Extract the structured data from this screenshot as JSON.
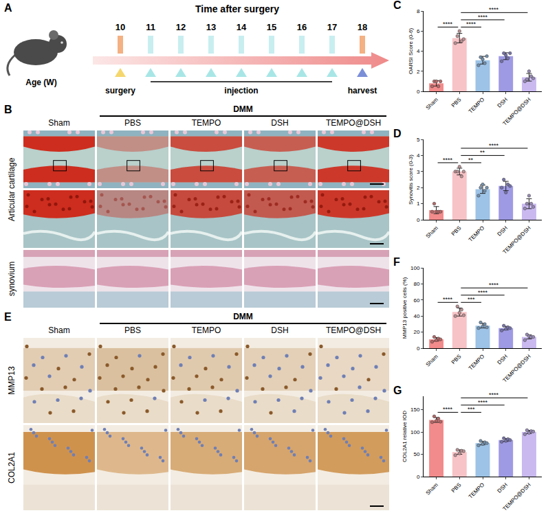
{
  "timeline": {
    "panel": "A",
    "title": "Time after surgery",
    "axis_label": "Age (W)",
    "weeks": [
      10,
      11,
      12,
      13,
      14,
      15,
      16,
      17,
      18
    ],
    "events": [
      {
        "label": "surgery",
        "from": 10,
        "to": 10,
        "color": "#f5d76e"
      },
      {
        "label": "injection",
        "from": 11,
        "to": 17,
        "color": "#a8e6e6"
      },
      {
        "label": "harvest",
        "from": 18,
        "to": 18,
        "color": "#7b8fd8"
      }
    ]
  },
  "histology": {
    "panel": "B",
    "group_label": "DMM",
    "columns": [
      "Sham",
      "PBS",
      "TEMPO",
      "DSH",
      "TEMPO@DSH"
    ],
    "group_columns": [
      "PBS",
      "TEMPO",
      "DSH",
      "TEMPO@DSH"
    ],
    "rows": [
      {
        "label": "Articular cartilage",
        "images": 2
      },
      {
        "label": "synovium",
        "images": 1
      }
    ]
  },
  "ihc": {
    "panel": "E",
    "group_label": "DMM",
    "columns": [
      "Sham",
      "PBS",
      "TEMPO",
      "DSH",
      "TEMPO@DSH"
    ],
    "group_columns": [
      "PBS",
      "TEMPO",
      "DSH",
      "TEMPO@DSH"
    ],
    "rows": [
      {
        "label": "MMP13"
      },
      {
        "label": "COL2A1"
      }
    ]
  },
  "chart_data": [
    {
      "panel": "C",
      "type": "bar",
      "ylabel": "OARSI Score (0-6)",
      "categories": [
        "Sham",
        "PBS",
        "TEMPO",
        "DSH",
        "TEMPO@DSH"
      ],
      "values": [
        0.8,
        5.3,
        3.1,
        3.5,
        1.4
      ],
      "errors": [
        0.27,
        0.47,
        0.38,
        0.34,
        0.38
      ],
      "points": [
        [
          0.5,
          1,
          1,
          0.5,
          1
        ],
        [
          4.8,
          5.5,
          6,
          5,
          5.2
        ],
        [
          2.6,
          3.4,
          3.2,
          2.8,
          3.5
        ],
        [
          3,
          3.8,
          3.6,
          3.3,
          3.8
        ],
        [
          1,
          1.2,
          2,
          1.5,
          1.3
        ]
      ],
      "colors": [
        "#f28b8b",
        "#f7c3c6",
        "#9dc3e6",
        "#9e9ae3",
        "#c9b9ef"
      ],
      "ylim": [
        0,
        8
      ],
      "yticks": [
        0,
        2,
        4,
        6,
        8
      ],
      "comparisons": [
        {
          "pair": [
            "Sham",
            "PBS"
          ],
          "label": "****"
        },
        {
          "pair": [
            "PBS",
            "TEMPO"
          ],
          "label": "****"
        },
        {
          "pair": [
            "PBS",
            "DSH"
          ],
          "label": "****"
        },
        {
          "pair": [
            "PBS",
            "TEMPO@DSH"
          ],
          "label": "****"
        }
      ]
    },
    {
      "panel": "D",
      "type": "bar",
      "ylabel": "Synovitis score (0-3)",
      "categories": [
        "Sham",
        "PBS",
        "TEMPO",
        "DSH",
        "TEMPO@DSH"
      ],
      "values": [
        0.6,
        3.0,
        1.9,
        2.1,
        1.0
      ],
      "errors": [
        0.22,
        0.21,
        0.26,
        0.29,
        0.31
      ],
      "points": [
        [
          0.5,
          1,
          0.5,
          0.5,
          0.5
        ],
        [
          3,
          3,
          3.3,
          2.7,
          3
        ],
        [
          1.5,
          2,
          2.2,
          1.8,
          2
        ],
        [
          2,
          2.5,
          1.7,
          2.2,
          2.1
        ],
        [
          0.7,
          1,
          1.5,
          1,
          0.8
        ]
      ],
      "colors": [
        "#f28b8b",
        "#f7c3c6",
        "#9dc3e6",
        "#9e9ae3",
        "#c9b9ef"
      ],
      "ylim": [
        0,
        5
      ],
      "yticks": [
        0,
        1,
        2,
        3,
        4,
        5
      ],
      "comparisons": [
        {
          "pair": [
            "Sham",
            "PBS"
          ],
          "label": "****"
        },
        {
          "pair": [
            "PBS",
            "TEMPO"
          ],
          "label": "**"
        },
        {
          "pair": [
            "PBS",
            "DSH"
          ],
          "label": "**"
        },
        {
          "pair": [
            "PBS",
            "TEMPO@DSH"
          ],
          "label": "****"
        }
      ]
    },
    {
      "panel": "F",
      "type": "bar",
      "ylabel": "MMP13 positive cells (%)",
      "categories": [
        "Sham",
        "PBS",
        "TEMPO",
        "DSH",
        "TEMPO@DSH"
      ],
      "values": [
        11,
        45,
        28,
        25,
        14
      ],
      "errors": [
        2.2,
        5,
        2.9,
        2.2,
        2.5
      ],
      "points": [
        [
          8,
          14,
          10,
          12,
          11
        ],
        [
          40,
          52,
          44,
          48,
          41
        ],
        [
          25,
          32,
          27,
          30,
          26
        ],
        [
          22,
          28,
          24,
          26,
          25
        ],
        [
          10,
          17,
          15,
          14,
          14
        ]
      ],
      "colors": [
        "#f28b8b",
        "#f7c3c6",
        "#9dc3e6",
        "#9e9ae3",
        "#c9b9ef"
      ],
      "ylim": [
        0,
        100
      ],
      "yticks": [
        0,
        20,
        40,
        60,
        80,
        100
      ],
      "comparisons": [
        {
          "pair": [
            "Sham",
            "PBS"
          ],
          "label": "****"
        },
        {
          "pair": [
            "PBS",
            "TEMPO"
          ],
          "label": "***"
        },
        {
          "pair": [
            "PBS",
            "DSH"
          ],
          "label": "****"
        },
        {
          "pair": [
            "PBS",
            "TEMPO@DSH"
          ],
          "label": "****"
        }
      ]
    },
    {
      "panel": "G",
      "type": "bar",
      "ylabel": "COL2A1 relative IOD",
      "categories": [
        "Sham",
        "PBS",
        "TEMPO",
        "DSH",
        "TEMPO@DSH"
      ],
      "values": [
        127,
        55,
        75,
        82,
        100
      ],
      "errors": [
        5.4,
        5,
        3.8,
        3.2,
        3.6
      ],
      "points": [
        [
          122,
          135,
          125,
          130,
          123
        ],
        [
          48,
          60,
          52,
          58,
          57
        ],
        [
          70,
          80,
          73,
          77,
          75
        ],
        [
          78,
          86,
          80,
          84,
          82
        ],
        [
          95,
          104,
          98,
          102,
          101
        ]
      ],
      "colors": [
        "#f28b8b",
        "#f7c3c6",
        "#9dc3e6",
        "#9e9ae3",
        "#c9b9ef"
      ],
      "ylim": [
        0,
        180
      ],
      "yticks": [
        0,
        50,
        100,
        150
      ],
      "comparisons": [
        {
          "pair": [
            "Sham",
            "PBS"
          ],
          "label": "****"
        },
        {
          "pair": [
            "PBS",
            "TEMPO"
          ],
          "label": "***"
        },
        {
          "pair": [
            "PBS",
            "DSH"
          ],
          "label": "****"
        },
        {
          "pair": [
            "PBS",
            "TEMPO@DSH"
          ],
          "label": "****"
        }
      ]
    }
  ]
}
